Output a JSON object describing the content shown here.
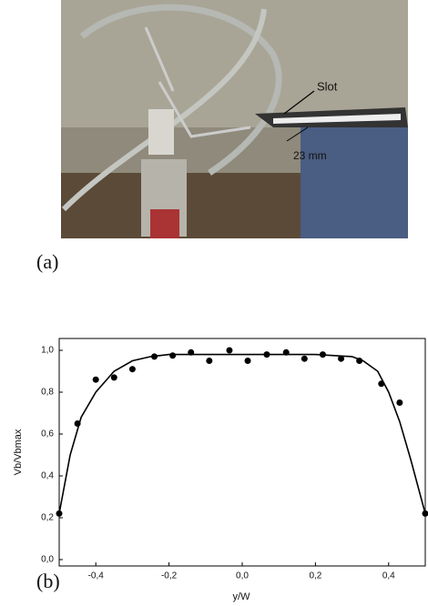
{
  "figure": {
    "photo_labels": [
      "Slot",
      "23 mm"
    ],
    "panel_labels": [
      "(a)",
      "(b)"
    ]
  },
  "chart_data": {
    "type": "scatter",
    "xlabel": "y/W",
    "ylabel": "Vb/Vbmax",
    "xlim": [
      -0.5,
      0.5
    ],
    "ylim": [
      0,
      1.1
    ],
    "xticks": [
      {
        "value": -0.4,
        "label": "-0,4"
      },
      {
        "value": -0.2,
        "label": "-0,2"
      },
      {
        "value": 0,
        "label": "0,0"
      },
      {
        "value": 0.2,
        "label": "0,2"
      },
      {
        "value": 0.4,
        "label": "0,4"
      }
    ],
    "yticks": [
      {
        "value": 0,
        "label": "0,0"
      },
      {
        "value": 0.2,
        "label": "0,2"
      },
      {
        "value": 0.4,
        "label": "0,4"
      },
      {
        "value": 0.6,
        "label": "0,6"
      },
      {
        "value": 0.8,
        "label": "0,8"
      },
      {
        "value": 1,
        "label": "1,0"
      }
    ],
    "series": [
      {
        "mode": "markers",
        "color": "#000000",
        "x": [
          -0.5,
          -0.45,
          -0.4,
          -0.35,
          -0.3,
          -0.24,
          -0.19,
          -0.14,
          -0.09,
          -0.035,
          0.015,
          0.067,
          0.12,
          0.17,
          0.22,
          0.27,
          0.32,
          0.38,
          0.43,
          0.5
        ],
        "values": [
          0.22,
          0.65,
          0.86,
          0.87,
          0.91,
          0.97,
          0.975,
          0.99,
          0.95,
          1.0,
          0.95,
          0.98,
          0.99,
          0.96,
          0.98,
          0.96,
          0.95,
          0.84,
          0.75,
          0.22
        ]
      },
      {
        "mode": "line",
        "color": "#000000",
        "x": [
          -0.5,
          -0.47,
          -0.44,
          -0.4,
          -0.35,
          -0.3,
          -0.25,
          -0.2,
          0,
          0.2,
          0.3,
          0.33,
          0.37,
          0.4,
          0.43,
          0.46,
          0.5
        ],
        "values": [
          0.22,
          0.5,
          0.68,
          0.8,
          0.9,
          0.95,
          0.97,
          0.98,
          0.98,
          0.98,
          0.97,
          0.95,
          0.9,
          0.8,
          0.66,
          0.48,
          0.22
        ]
      }
    ]
  }
}
